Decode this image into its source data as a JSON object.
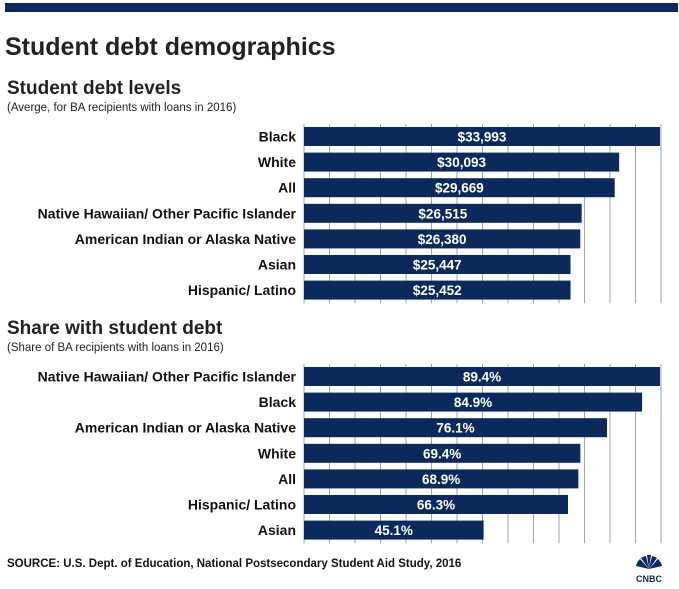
{
  "header": {
    "title": "Student debt demographics"
  },
  "charts": {
    "levels": {
      "title": "Student debt levels",
      "note": "(Averge, for BA recipients with loans in 2016)"
    },
    "share": {
      "title": "Share with student debt",
      "note": "(Share of BA recipients with loans in 2016)"
    }
  },
  "footer": {
    "source": "SOURCE: U.S. Dept. of Education, National Postsecondary Student Aid Study, 2016",
    "logo_text": "CNBC"
  },
  "colors": {
    "bar": "#0b2a5b",
    "grid": "#9aa6b8",
    "bar_label": "#ffffff"
  },
  "chart_data": [
    {
      "type": "bar",
      "orientation": "horizontal",
      "title": "Student debt levels",
      "subtitle": "(Averge, for BA recipients with loans in 2016)",
      "categories": [
        "Black",
        "White",
        "All",
        "Native Hawaiian/ Other Pacific Islander",
        "American Indian or Alaska Native",
        "Asian",
        "Hispanic/ Latino"
      ],
      "values": [
        33993,
        30093,
        29669,
        26515,
        26380,
        25447,
        25452
      ],
      "value_labels": [
        "$33,993",
        "$30,093",
        "$29,669",
        "$26,515",
        "$26,380",
        "$25,447",
        "$25,452"
      ],
      "xlim": [
        0,
        33993
      ],
      "grid": true
    },
    {
      "type": "bar",
      "orientation": "horizontal",
      "title": "Share with student debt",
      "subtitle": "(Share of BA recipients with loans in 2016)",
      "categories": [
        "Native Hawaiian/ Other Pacific Islander",
        "Black",
        "American Indian or Alaska Native",
        "White",
        "All",
        "Hispanic/ Latino",
        "Asian"
      ],
      "values": [
        89.4,
        84.9,
        76.1,
        69.4,
        68.9,
        66.3,
        45.1
      ],
      "value_labels": [
        "89.4%",
        "84.9%",
        "76.1%",
        "69.4%",
        "68.9%",
        "66.3%",
        "45.1%"
      ],
      "xlim": [
        0,
        89.4
      ],
      "grid": true
    }
  ]
}
